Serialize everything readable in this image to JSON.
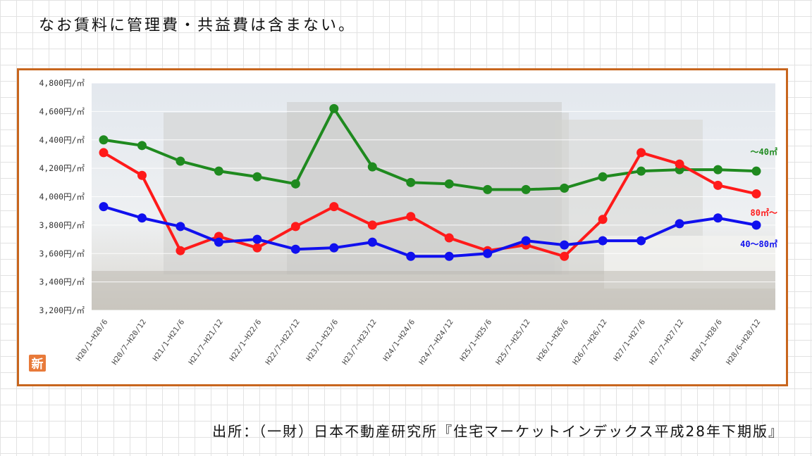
{
  "header": {
    "note": "なお賃料に管理費・共益費は含まない。"
  },
  "footer": {
    "source": "出所：（一財）日本不動産研究所『住宅マーケットインデックス平成28年下期版』"
  },
  "badge": {
    "text": "新",
    "color": "#e87a3a"
  },
  "colors": {
    "frame": "#c8661e"
  },
  "chart_data": {
    "type": "line",
    "ylim": [
      3200,
      4800
    ],
    "yticks": [
      {
        "v": 3200,
        "label": "3,200円/㎡"
      },
      {
        "v": 3400,
        "label": "3,400円/㎡"
      },
      {
        "v": 3600,
        "label": "3,600円/㎡"
      },
      {
        "v": 3800,
        "label": "3,800円/㎡"
      },
      {
        "v": 4000,
        "label": "4,000円/㎡"
      },
      {
        "v": 4200,
        "label": "4,200円/㎡"
      },
      {
        "v": 4400,
        "label": "4,400円/㎡"
      },
      {
        "v": 4600,
        "label": "4,600円/㎡"
      },
      {
        "v": 4800,
        "label": "4,800円/㎡"
      }
    ],
    "categories": [
      "H20/1~H20/6",
      "H20/7~H20/12",
      "H21/1~H21/6",
      "H21/7~H21/12",
      "H22/1~H22/6",
      "H22/7~H22/12",
      "H23/1~H23/6",
      "H23/7~H23/12",
      "H24/1~H24/6",
      "H24/7~H24/12",
      "H25/1~H25/6",
      "H25/7~H25/12",
      "H26/1~H26/6",
      "H26/7~H26/12",
      "H27/1~H27/6",
      "H27/7~H27/12",
      "H28/1~H28/6",
      "H28/6~H28/12"
    ],
    "grid": true,
    "series": [
      {
        "name": "～40㎡",
        "color": "#1f8a1f",
        "values": [
          4400,
          4360,
          4250,
          4180,
          4140,
          4090,
          4620,
          4210,
          4100,
          4090,
          4050,
          4050,
          4060,
          4140,
          4180,
          4190,
          4190,
          4180
        ]
      },
      {
        "name": "80㎡～",
        "color": "#ff1a1a",
        "values": [
          4310,
          4150,
          3620,
          3720,
          3640,
          3790,
          3930,
          3800,
          3860,
          3710,
          3620,
          3660,
          3580,
          3840,
          4310,
          4230,
          4080,
          4020
        ]
      },
      {
        "name": "40～80㎡",
        "color": "#1010ee",
        "values": [
          3930,
          3850,
          3790,
          3680,
          3700,
          3630,
          3640,
          3680,
          3580,
          3580,
          3600,
          3690,
          3660,
          3690,
          3690,
          3810,
          3850,
          3800
        ]
      }
    ]
  }
}
